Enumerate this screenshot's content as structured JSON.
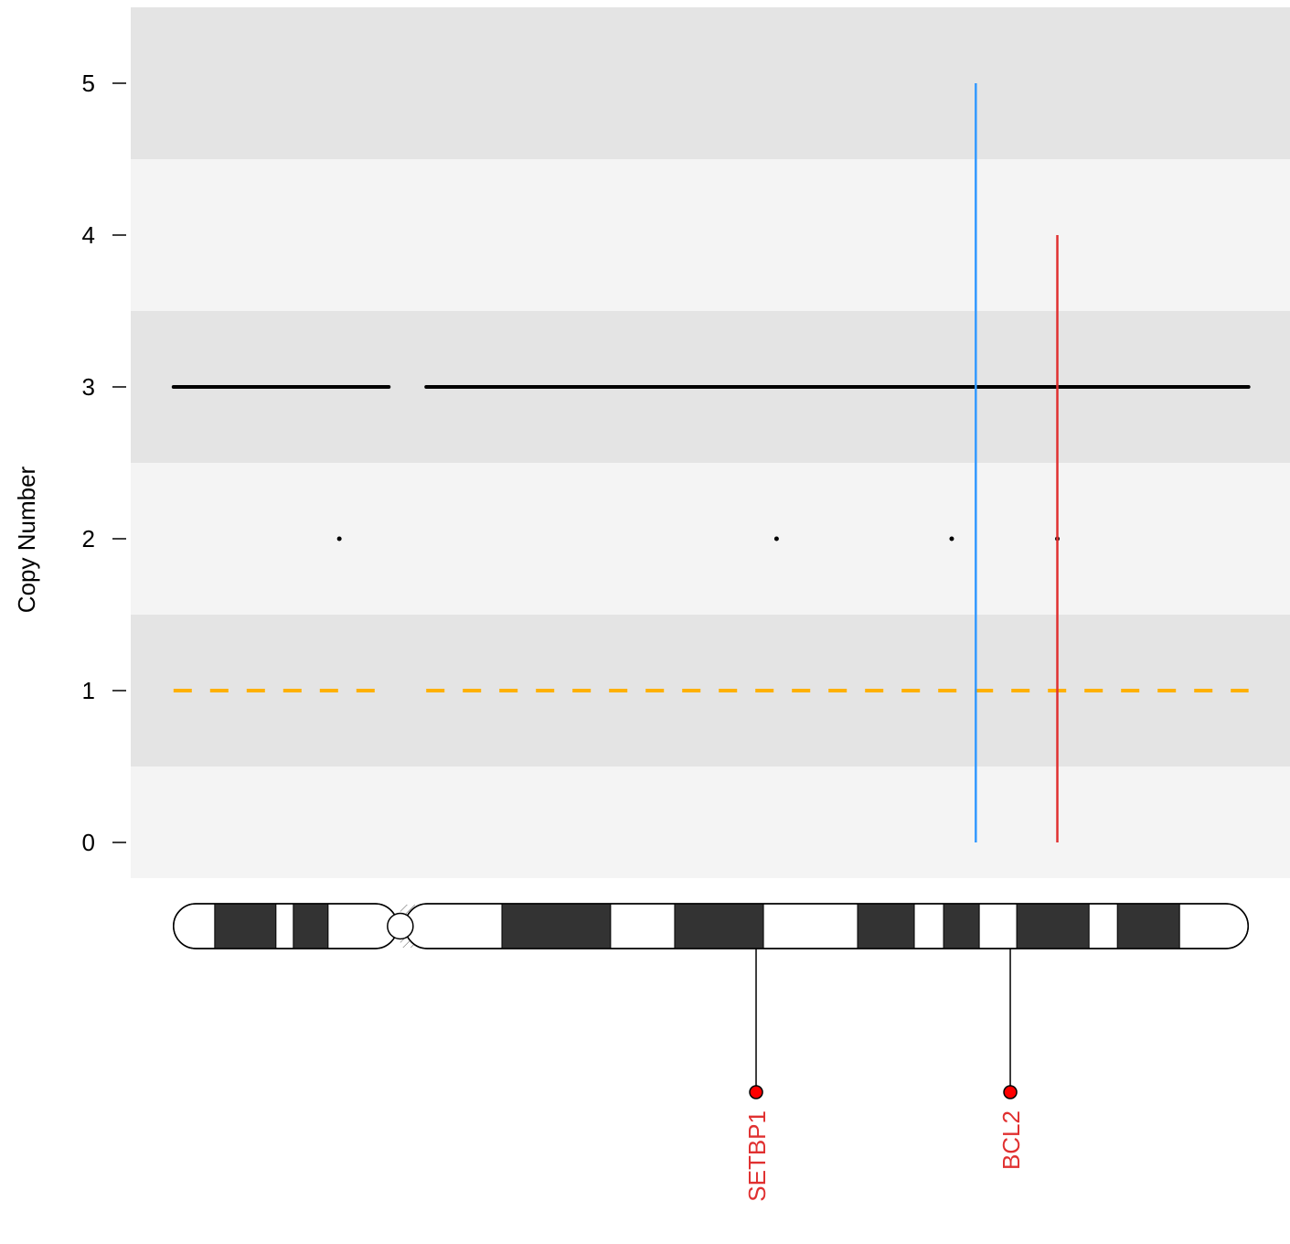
{
  "chart_data": {
    "type": "copy-number",
    "y_label": "Copy Number",
    "xlim": [
      -3.2,
      83.5
    ],
    "ylim": [
      -0.235,
      5.5
    ],
    "yticks": [
      0,
      1,
      2,
      3,
      4,
      5
    ],
    "band_colors": [
      "#e4e4e4",
      "#f4f4f4"
    ],
    "total_cn": {
      "color": "#000000",
      "segments": [
        {
          "start": 0,
          "end": 16.1,
          "value": 3
        },
        {
          "start": 18.9,
          "end": 80.4,
          "value": 3
        }
      ]
    },
    "minor_cn": {
      "color": "#ffb000",
      "segments": [
        {
          "start": 0,
          "end": 16.1,
          "value": 1
        },
        {
          "start": 18.9,
          "end": 80.4,
          "value": 1
        }
      ]
    },
    "points": {
      "color": "#000000",
      "x": [
        12.4,
        45.1,
        58.2,
        66.1
      ],
      "values": [
        2,
        2,
        2,
        2
      ]
    },
    "vlines": [
      {
        "x": 60.0,
        "value": 5,
        "color": "#3399ff"
      },
      {
        "x": 66.1,
        "value": 4,
        "color": "#e03030"
      }
    ],
    "ideogram": {
      "start": 0,
      "end": 80.37,
      "centromere": 16.96,
      "hatch_end": 18.13,
      "band_color": "#333333",
      "dark_bands": [
        [
          3.08,
          7.66
        ],
        [
          8.96,
          11.56
        ],
        [
          24.56,
          32.69
        ],
        [
          37.48,
          44.12
        ],
        [
          51.16,
          55.4
        ],
        [
          57.59,
          60.26
        ],
        [
          63.06,
          68.47
        ],
        [
          70.59,
          75.24
        ]
      ]
    },
    "genes": {
      "color": "#e03030",
      "items": [
        {
          "name": "SETBP1",
          "pos": 43.57
        },
        {
          "name": "BCL2",
          "pos": 62.58
        }
      ]
    }
  }
}
